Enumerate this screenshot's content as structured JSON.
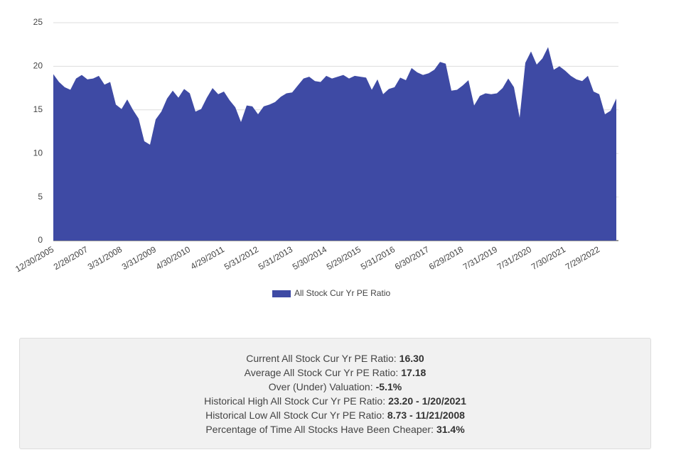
{
  "chart_data": {
    "type": "area",
    "categories": [
      "12/30/2005",
      null,
      null,
      null,
      null,
      null,
      "2/28/2007",
      null,
      null,
      null,
      null,
      null,
      "3/31/2008",
      null,
      null,
      null,
      null,
      null,
      "3/31/2009",
      null,
      null,
      null,
      null,
      null,
      "4/30/2010",
      null,
      null,
      null,
      null,
      null,
      "4/29/2011",
      null,
      null,
      null,
      null,
      null,
      "5/31/2012",
      null,
      null,
      null,
      null,
      null,
      "5/31/2013",
      null,
      null,
      null,
      null,
      null,
      "5/30/2014",
      null,
      null,
      null,
      null,
      null,
      "5/29/2015",
      null,
      null,
      null,
      null,
      null,
      "5/31/2016",
      null,
      null,
      null,
      null,
      null,
      "6/30/2017",
      null,
      null,
      null,
      null,
      null,
      "6/29/2018",
      null,
      null,
      null,
      null,
      null,
      "7/31/2019",
      null,
      null,
      null,
      null,
      null,
      "7/31/2020",
      null,
      null,
      null,
      null,
      null,
      "7/30/2021",
      null,
      null,
      null,
      null,
      null,
      "7/29/2022",
      null,
      null,
      null
    ],
    "series": [
      {
        "name": "All Stock Cur Yr PE Ratio",
        "color": "#3e4aa4",
        "values": [
          19.1,
          18.2,
          17.6,
          17.3,
          18.6,
          19.0,
          18.5,
          18.6,
          18.9,
          17.9,
          18.2,
          15.6,
          15.1,
          16.2,
          15.0,
          14.0,
          11.4,
          11.0,
          13.9,
          14.8,
          16.3,
          17.2,
          16.4,
          17.4,
          16.9,
          14.8,
          15.1,
          16.4,
          17.5,
          16.8,
          17.1,
          16.1,
          15.3,
          13.6,
          15.5,
          15.4,
          14.5,
          15.4,
          15.6,
          15.9,
          16.5,
          16.9,
          17.0,
          17.8,
          18.6,
          18.8,
          18.3,
          18.2,
          18.9,
          18.6,
          18.8,
          19.0,
          18.6,
          18.9,
          18.8,
          18.7,
          17.3,
          18.5,
          16.8,
          17.4,
          17.6,
          18.7,
          18.4,
          19.8,
          19.3,
          19.0,
          19.2,
          19.6,
          20.5,
          20.3,
          17.2,
          17.3,
          17.8,
          18.4,
          15.5,
          16.6,
          16.9,
          16.8,
          16.9,
          17.5,
          18.6,
          17.6,
          14.1,
          20.4,
          21.7,
          20.2,
          20.9,
          22.2,
          19.6,
          20.0,
          19.5,
          18.9,
          18.5,
          18.3,
          18.9,
          17.1,
          16.8,
          14.5,
          14.9,
          16.3
        ]
      }
    ],
    "ylim": [
      0,
      25
    ],
    "yticks": [
      0,
      5,
      10,
      15,
      20,
      25
    ],
    "grid": true,
    "legend": "bottom"
  },
  "stats": [
    {
      "label": "Current All Stock Cur Yr PE Ratio:",
      "value": "16.30"
    },
    {
      "label": "Average All Stock Cur Yr PE Ratio:",
      "value": "17.18"
    },
    {
      "label": "Over (Under) Valuation:",
      "value": "-5.1%"
    },
    {
      "label": "Historical High All Stock Cur Yr PE Ratio:",
      "value": "23.20 - 1/20/2021"
    },
    {
      "label": "Historical Low All Stock Cur Yr PE Ratio:",
      "value": "8.73 - 11/21/2008"
    },
    {
      "label": "Percentage of Time All Stocks Have Been Cheaper:",
      "value": "31.4%"
    }
  ]
}
